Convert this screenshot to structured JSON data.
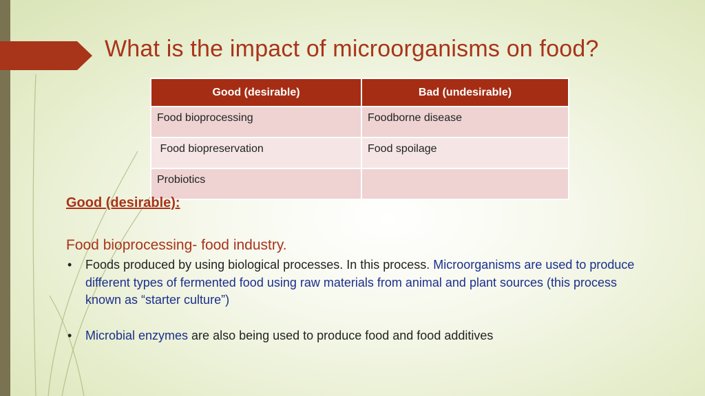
{
  "title": "What is the impact of microorganisms on food?",
  "table": {
    "headers": [
      "Good (desirable)",
      "Bad (undesirable)"
    ],
    "rows": [
      [
        "Food bioprocessing",
        "Foodborne disease"
      ],
      [
        " Food biopreservation",
        "Food spoilage"
      ],
      [
        "Probiotics",
        ""
      ]
    ]
  },
  "subheading": "Good (desirable):",
  "section_heading": "Food bioprocessing- food industry.",
  "bullets": [
    {
      "marker": "•",
      "text_black": "Foods produced by using biological processes. In this process",
      "text_period": ".",
      "text_blue": " Microorganisms are used to produce different types of fermented food using raw materials from animal and plant sources (this process known as “starter culture”)"
    },
    {
      "marker": "•",
      "text_blue": "Microbial enzymes",
      "text_black": " are also being used to produce food and food additives"
    }
  ],
  "colors": {
    "accent": "#a8341a",
    "header_fill": "#a52d14",
    "body_blue": "#1a2f8c",
    "cell_fill": "#eed3d2",
    "left_bar": "#7a7352"
  }
}
